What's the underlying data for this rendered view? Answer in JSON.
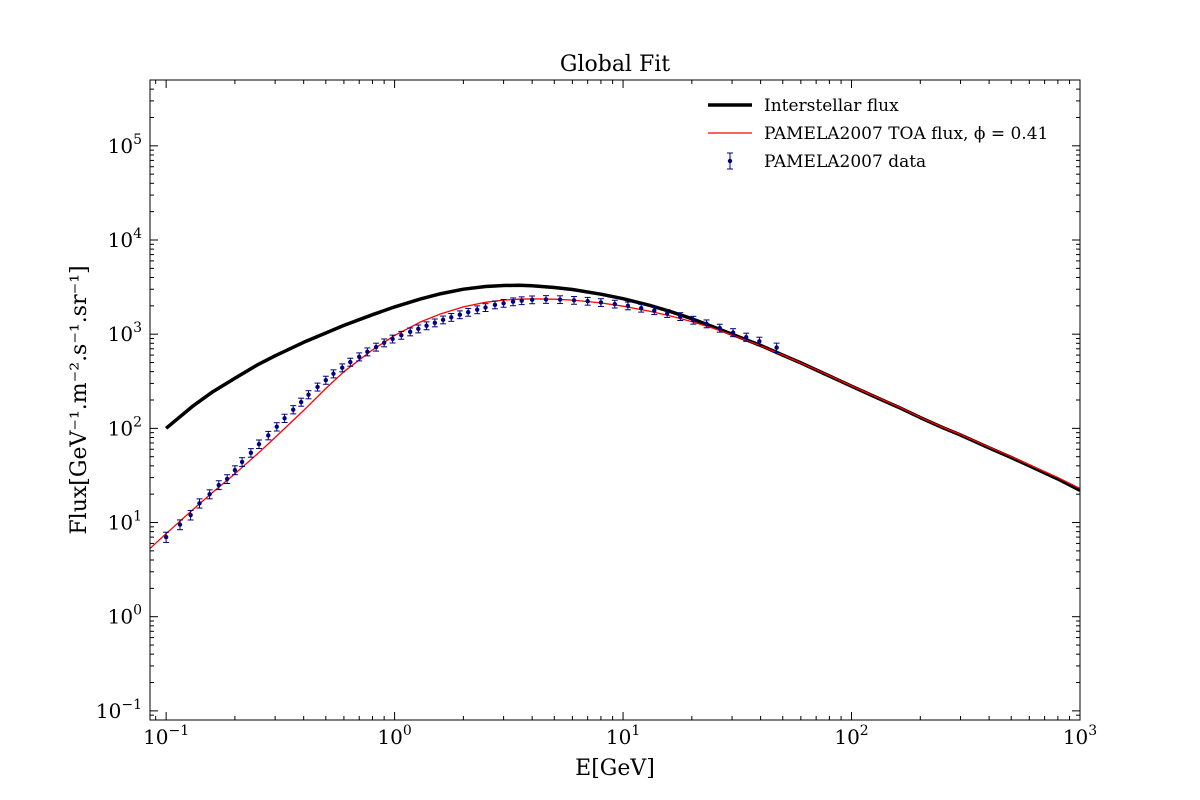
{
  "chart_data": {
    "type": "line",
    "title": "Global Fit",
    "xlabel": "E[GeV]",
    "ylabel": "Flux[GeV⁻¹.m⁻².s⁻¹.sr⁻¹]",
    "x_scale": "log",
    "y_scale": "log",
    "xlim": [
      0.085,
      1000
    ],
    "ylim": [
      0.08,
      500000
    ],
    "grid": false,
    "legend_position": "top-right",
    "x_ticks": [
      {
        "value": 0.1,
        "base": "10",
        "exp": "−1"
      },
      {
        "value": 1,
        "base": "10",
        "exp": "0"
      },
      {
        "value": 10,
        "base": "10",
        "exp": "1"
      },
      {
        "value": 100,
        "base": "10",
        "exp": "2"
      },
      {
        "value": 1000,
        "base": "10",
        "exp": "3"
      }
    ],
    "y_ticks": [
      {
        "value": 0.1,
        "base": "10",
        "exp": "−1"
      },
      {
        "value": 1,
        "base": "10",
        "exp": "0"
      },
      {
        "value": 10,
        "base": "10",
        "exp": "1"
      },
      {
        "value": 100,
        "base": "10",
        "exp": "2"
      },
      {
        "value": 1000,
        "base": "10",
        "exp": "3"
      },
      {
        "value": 10000,
        "base": "10",
        "exp": "4"
      },
      {
        "value": 100000,
        "base": "10",
        "exp": "5"
      }
    ],
    "series": [
      {
        "name": "Interstellar flux",
        "kind": "line",
        "color": "#000000",
        "x": [
          0.1,
          0.13,
          0.16,
          0.2,
          0.25,
          0.3,
          0.4,
          0.5,
          0.6,
          0.8,
          1.0,
          1.3,
          1.6,
          2.0,
          2.5,
          3.0,
          3.5,
          4.0,
          5.0,
          6.0,
          8.0,
          10,
          13,
          16,
          20,
          25,
          30,
          40,
          50,
          60,
          80,
          100,
          130,
          160,
          200,
          250,
          300,
          400,
          500,
          600,
          800,
          1000
        ],
        "y": [
          100,
          170,
          245,
          340,
          470,
          590,
          820,
          1030,
          1240,
          1610,
          1950,
          2370,
          2700,
          3000,
          3210,
          3290,
          3300,
          3260,
          3130,
          2980,
          2660,
          2380,
          2030,
          1750,
          1460,
          1190,
          1000,
          760,
          600,
          495,
          360,
          280,
          210,
          168,
          130,
          102,
          85,
          62,
          49,
          40,
          29,
          22
        ]
      },
      {
        "name": "PAMELA2007 TOA flux, ϕ = 0.41",
        "kind": "line",
        "color": "#ff0000",
        "x": [
          0.085,
          0.1,
          0.13,
          0.16,
          0.2,
          0.25,
          0.3,
          0.4,
          0.5,
          0.6,
          0.8,
          1.0,
          1.3,
          1.6,
          2.0,
          2.5,
          3.0,
          3.5,
          4.0,
          5.0,
          6.0,
          8.0,
          10,
          13,
          16,
          20,
          25,
          30,
          40,
          50,
          60,
          80,
          100,
          130,
          160,
          200,
          250,
          300,
          400,
          500,
          600,
          800,
          1000
        ],
        "y": [
          5.3,
          7.6,
          13.5,
          21,
          33,
          53,
          80,
          155,
          265,
          400,
          680,
          970,
          1350,
          1650,
          1950,
          2180,
          2300,
          2350,
          2370,
          2350,
          2300,
          2150,
          1980,
          1760,
          1570,
          1360,
          1150,
          980,
          755,
          600,
          495,
          362,
          282,
          212,
          170,
          131,
          103,
          86,
          63,
          50,
          41,
          30,
          23
        ]
      },
      {
        "name": "PAMELA2007 data",
        "kind": "errorbar",
        "color": "#00007f",
        "x": [
          0.1,
          0.115,
          0.128,
          0.14,
          0.155,
          0.17,
          0.185,
          0.2,
          0.215,
          0.235,
          0.255,
          0.28,
          0.305,
          0.33,
          0.36,
          0.39,
          0.42,
          0.46,
          0.5,
          0.54,
          0.59,
          0.64,
          0.7,
          0.76,
          0.83,
          0.9,
          0.98,
          1.07,
          1.17,
          1.27,
          1.38,
          1.5,
          1.63,
          1.77,
          1.93,
          2.1,
          2.3,
          2.5,
          2.75,
          3.0,
          3.3,
          3.6,
          4.0,
          4.6,
          5.3,
          6.1,
          7.0,
          8.0,
          9.2,
          10.5,
          12,
          13.7,
          15.6,
          17.8,
          20.3,
          23.2,
          26.5,
          30.3,
          34.6,
          39.5,
          47
        ],
        "y": [
          7.0,
          9.5,
          12,
          16,
          20,
          25,
          29,
          36,
          44,
          55,
          68,
          84,
          104,
          128,
          158,
          190,
          228,
          275,
          325,
          380,
          440,
          505,
          575,
          650,
          730,
          810,
          890,
          975,
          1060,
          1140,
          1230,
          1320,
          1420,
          1510,
          1610,
          1710,
          1820,
          1920,
          2050,
          2130,
          2210,
          2270,
          2320,
          2340,
          2330,
          2290,
          2240,
          2170,
          2090,
          2000,
          1890,
          1780,
          1660,
          1540,
          1410,
          1290,
          1160,
          1040,
          930,
          840,
          720
        ],
        "err": [
          0.7,
          0.9,
          1.1,
          1.4,
          1.7,
          2.1,
          2.4,
          3,
          3.6,
          4.4,
          5.4,
          6.6,
          8,
          9.8,
          12,
          14,
          17,
          20,
          24,
          28,
          32,
          37,
          42,
          47,
          53,
          58,
          64,
          70,
          76,
          82,
          88,
          94,
          100,
          107,
          114,
          121,
          128,
          135,
          144,
          150,
          155,
          159,
          162,
          164,
          163,
          160,
          157,
          152,
          146,
          140,
          133,
          125,
          117,
          109,
          100,
          92,
          84,
          76,
          70,
          66,
          64
        ]
      }
    ]
  }
}
